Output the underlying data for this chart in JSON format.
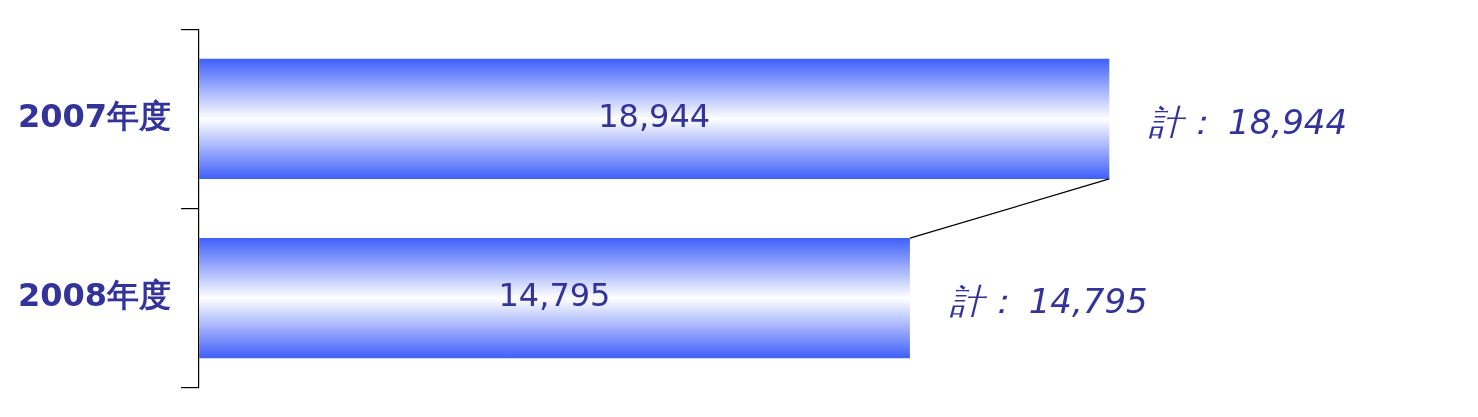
{
  "chart_data": {
    "type": "bar",
    "orientation": "horizontal",
    "stacked": true,
    "categories": [
      "2007年度",
      "2008年度"
    ],
    "series": [
      {
        "color": "#3f5ffa",
        "values": [
          18944,
          14795
        ],
        "value_labels": [
          "18,944",
          "14,795"
        ]
      }
    ],
    "totals": [
      "計： 18,944",
      "計： 14,795"
    ],
    "grid": false,
    "legend": false
  }
}
